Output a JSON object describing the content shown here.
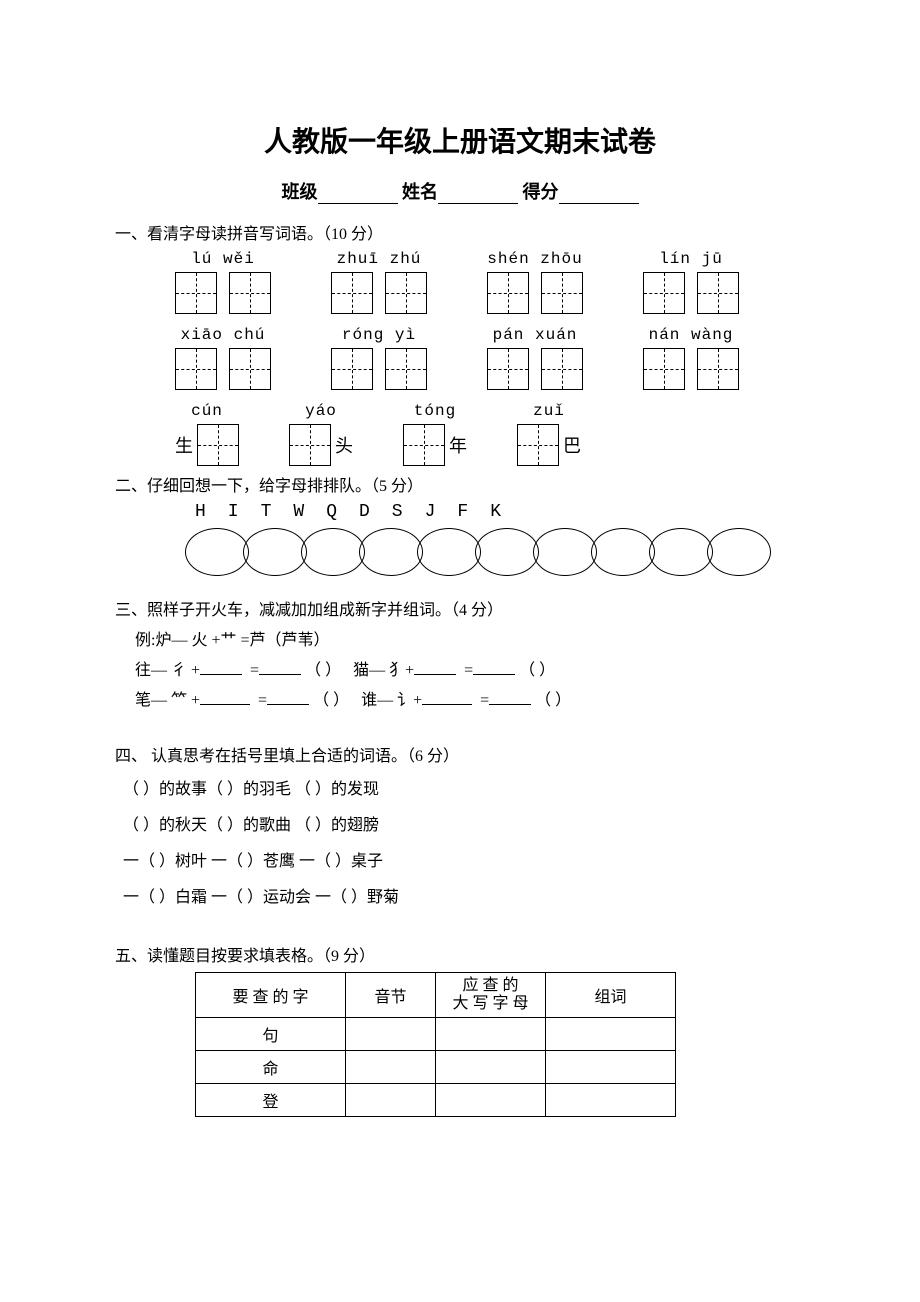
{
  "title": "人教版一年级上册语文期末试卷",
  "header": {
    "class_label": "班级",
    "name_label": "姓名",
    "score_label": "得分"
  },
  "q1": {
    "heading": "一、看清字母读拼音写词语。（10 分）",
    "row1": [
      {
        "pinyin": "lú  wěi"
      },
      {
        "pinyin": "zhuī zhú"
      },
      {
        "pinyin": "shén zhōu"
      },
      {
        "pinyin": "lín  jū"
      }
    ],
    "row2": [
      {
        "pinyin": "xiāo chú"
      },
      {
        "pinyin": "róng  yì"
      },
      {
        "pinyin": "pán xuán"
      },
      {
        "pinyin": "nán wàng"
      }
    ],
    "row3": [
      {
        "pinyin": "cún",
        "prefix": "生",
        "suffix": ""
      },
      {
        "pinyin": "yáo",
        "prefix": "",
        "suffix": "头"
      },
      {
        "pinyin": "tóng",
        "prefix": "",
        "suffix": "年"
      },
      {
        "pinyin": "zuǐ",
        "prefix": "",
        "suffix": "巴"
      }
    ]
  },
  "q2": {
    "heading": "二、仔细回想一下，给字母排排队。（5 分）",
    "letters": "H I T W Q D S J F K",
    "oval_count": 10
  },
  "q3": {
    "heading": "三、照样子开火车，减减加加组成新字并组词。（4 分）",
    "example": "例:炉— 火  +艹   =芦（芦苇）",
    "lines": [
      {
        "a": "往— 彳 +",
        "b": "=",
        "c": "（       ）",
        "d": "猫— 犭+",
        "e": "=",
        "f": "（       ）"
      },
      {
        "a": "笔— 𥫗  +",
        "b": "=",
        "c": "（       ）",
        "d": "谁— 讠+",
        "e": "=",
        "f": "（       ）"
      }
    ]
  },
  "q4": {
    "heading": "四、  认真思考在括号里填上合适的词语。（6 分）",
    "lines": [
      "（      ）的故事（           ）的羽毛  （           ）的发现",
      "（           ）的秋天（           ）的歌曲  （           ）的翅膀",
      " 一（    ）树叶     一（    ）苍鹰     一（    ）桌子",
      " 一（    ）白霜     一（    ）运动会   一（    ）野菊"
    ]
  },
  "q5": {
    "heading": "五、读懂题目按要求填表格。（9 分）",
    "columns": [
      "要 查 的 字",
      "音节",
      "应 查 的\n大 写 字 母",
      "组词"
    ],
    "rows": [
      "句",
      "命",
      "登"
    ]
  },
  "colors": {
    "background": "#ffffff",
    "text": "#000000",
    "border": "#000000"
  }
}
